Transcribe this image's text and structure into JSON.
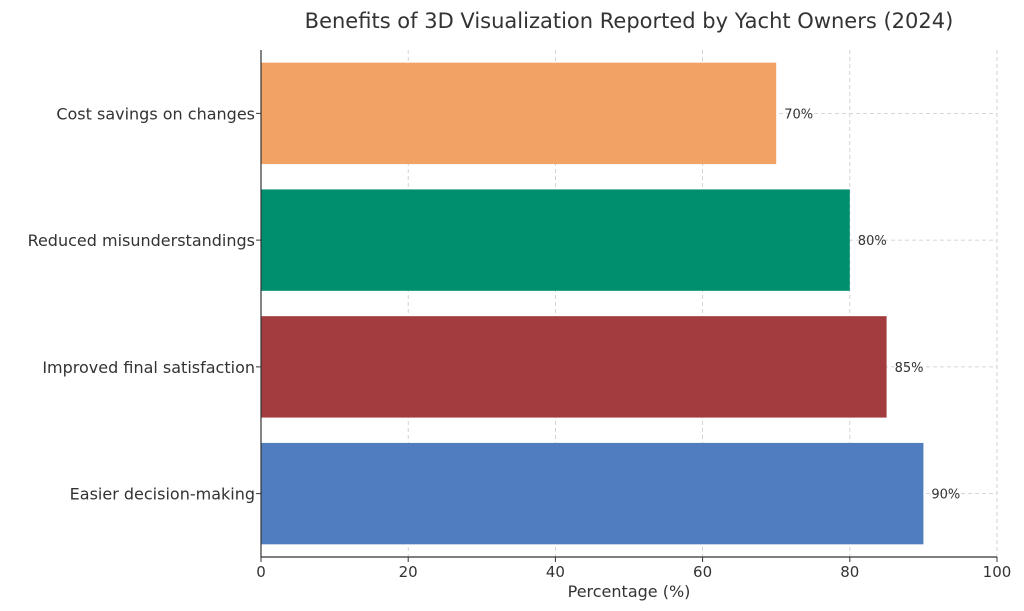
{
  "chart_data": {
    "type": "bar",
    "orientation": "horizontal",
    "title": "Benefits of 3D Visualization Reported by Yacht Owners (2024)",
    "xlabel": "Percentage (%)",
    "ylabel": "",
    "xlim": [
      0,
      100
    ],
    "xticks": [
      "0",
      "20",
      "40",
      "60",
      "80",
      "100"
    ],
    "grid": true,
    "categories": [
      "Easier decision-making",
      "Improved final satisfaction",
      "Reduced misunderstandings",
      "Cost savings on changes"
    ],
    "values": [
      90,
      85,
      80,
      70
    ],
    "value_labels": [
      "90%",
      "85%",
      "80%",
      "70%"
    ],
    "colors": [
      "#4f7dbd",
      "#a23c3f",
      "#008f6e",
      "#f1a264"
    ]
  }
}
